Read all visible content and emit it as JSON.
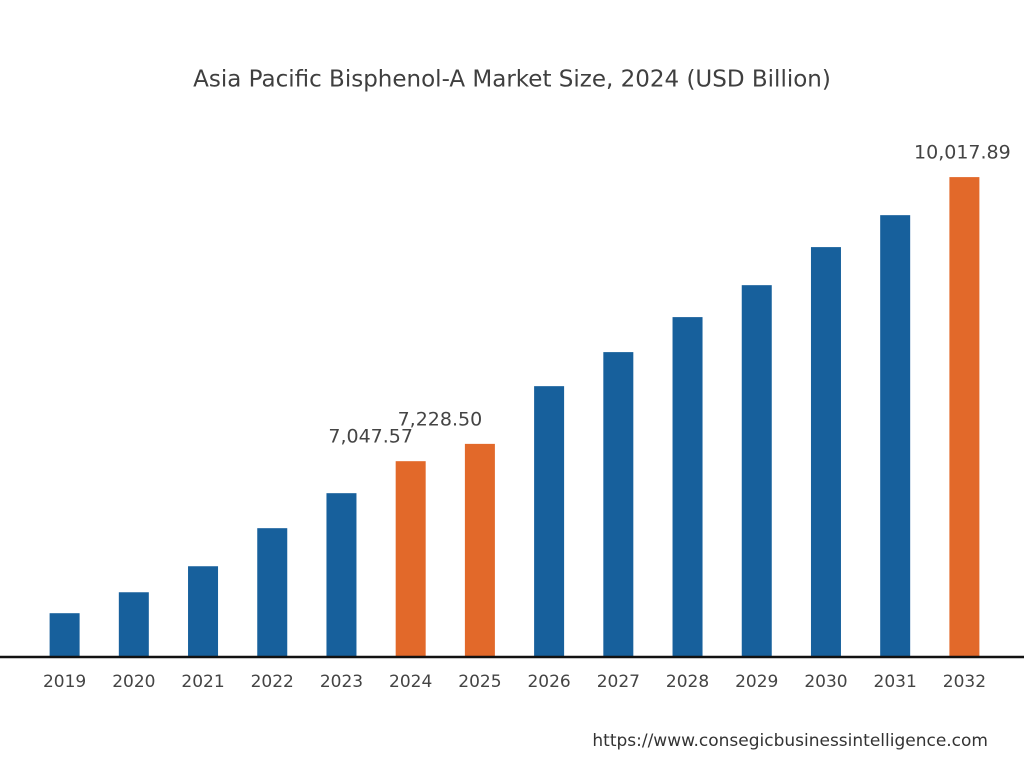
{
  "chart_data": {
    "type": "bar",
    "title": "Asia Pacific Bisphenol-A Market Size, 2024 (USD Billion)",
    "categories": [
      "2019",
      "2020",
      "2021",
      "2022",
      "2023",
      "2024",
      "2025",
      "2026",
      "2027",
      "2028",
      "2029",
      "2030",
      "2031",
      "2032"
    ],
    "values": [
      5458,
      5677,
      5949,
      6347,
      6713,
      7047.57,
      7228.5,
      7832,
      8188,
      8554,
      8888,
      9286,
      9620,
      10017.89
    ],
    "value_labels": [
      null,
      null,
      null,
      null,
      null,
      "7,047.57",
      "7,228.50",
      null,
      null,
      null,
      null,
      null,
      null,
      "10,017.89"
    ],
    "colors": [
      "#17609c",
      "#17609c",
      "#17609c",
      "#17609c",
      "#17609c",
      "#e2692a",
      "#e2692a",
      "#17609c",
      "#17609c",
      "#17609c",
      "#17609c",
      "#17609c",
      "#17609c",
      "#e2692a"
    ],
    "ylim": [
      5000,
      10500
    ],
    "source": "https://www.consegicbusinessintelligence.com"
  }
}
